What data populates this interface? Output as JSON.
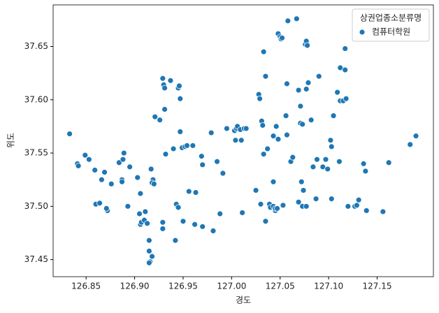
{
  "chart_data": {
    "type": "scatter",
    "x_label": "경도",
    "y_label": "위도",
    "legend_title": "상권업종소분류명",
    "legend": "upper right",
    "xlim": [
      126.816,
      127.208
    ],
    "ylim": [
      37.434,
      37.689
    ],
    "xticks": [
      126.85,
      {
        "value": 126.9,
        "label": "126.90"
      },
      126.95,
      {
        "value": 127.0,
        "label": "127.00"
      },
      127.05,
      {
        "value": 127.1,
        "label": "127.10"
      },
      127.15
    ],
    "yticks": [
      37.45,
      {
        "value": 37.5,
        "label": "37.50"
      },
      37.55,
      {
        "value": 37.6,
        "label": "37.60"
      },
      37.65
    ],
    "x": [
      126.833,
      126.841,
      126.842,
      126.849,
      126.853,
      126.859,
      126.866,
      126.869,
      126.86,
      126.864,
      126.872,
      126.871,
      126.876,
      126.884,
      126.888,
      126.889,
      126.887,
      126.887,
      126.893,
      126.895,
      126.903,
      126.906,
      126.905,
      126.906,
      126.907,
      126.911,
      126.91,
      126.913,
      126.915,
      126.915,
      126.916,
      126.918,
      126.915,
      126.917,
      126.919,
      126.918,
      126.92,
      126.921,
      126.926,
      126.929,
      126.93,
      126.931,
      126.931,
      126.932,
      126.929,
      126.929,
      126.937,
      126.94,
      126.943,
      126.945,
      126.945,
      126.946,
      126.947,
      126.947,
      126.949,
      126.952,
      126.954,
      126.95,
      126.956,
      126.96,
      126.963,
      126.962,
      126.942,
      126.969,
      126.97,
      126.97,
      126.979,
      126.981,
      126.985,
      126.988,
      126.991,
      126.995,
      127.003,
      127.004,
      127.005,
      127.006,
      127.009,
      127.01,
      127.013,
      127.015,
      127.011,
      127.025,
      127.03,
      127.028,
      127.029,
      127.031,
      127.032,
      127.033,
      127.033,
      127.035,
      127.035,
      127.037,
      127.039,
      127.04,
      127.043,
      127.043,
      127.045,
      127.045,
      127.047,
      127.046,
      127.048,
      127.048,
      127.05,
      127.051,
      127.052,
      127.043,
      127.053,
      127.056,
      127.057,
      127.057,
      127.058,
      127.061,
      127.063,
      127.067,
      127.069,
      127.069,
      127.071,
      127.071,
      127.072,
      127.073,
      127.073,
      127.074,
      127.077,
      127.077,
      127.076,
      127.077,
      127.078,
      127.079,
      127.082,
      127.084,
      127.087,
      127.088,
      127.09,
      127.094,
      127.097,
      127.099,
      127.102,
      127.103,
      127.103,
      127.105,
      127.109,
      127.112,
      127.111,
      127.117,
      127.112,
      127.117,
      127.115,
      127.118,
      127.12,
      127.127,
      127.129,
      127.131,
      127.138,
      127.139,
      127.136,
      127.156,
      127.162,
      127.184,
      127.19
    ],
    "series": [
      {
        "name": "컴퓨터학원",
        "color": "#1f77b4",
        "values": [
          37.568,
          37.54,
          37.538,
          37.548,
          37.544,
          37.534,
          37.525,
          37.532,
          37.502,
          37.503,
          37.496,
          37.498,
          37.521,
          37.541,
          37.544,
          37.55,
          37.525,
          37.523,
          37.5,
          37.537,
          37.527,
          37.512,
          37.493,
          37.483,
          37.485,
          37.495,
          37.487,
          37.484,
          37.468,
          37.458,
          37.448,
          37.453,
          37.447,
          37.535,
          37.525,
          37.522,
          37.521,
          37.584,
          37.581,
          37.62,
          37.614,
          37.611,
          37.591,
          37.549,
          37.485,
          37.479,
          37.618,
          37.554,
          37.502,
          37.499,
          37.611,
          37.613,
          37.601,
          37.57,
          37.555,
          37.556,
          37.557,
          37.486,
          37.514,
          37.557,
          37.513,
          37.483,
          37.468,
          37.547,
          37.539,
          37.481,
          37.569,
          37.477,
          37.542,
          37.493,
          37.531,
          37.573,
          37.571,
          37.562,
          37.573,
          37.575,
          37.572,
          37.562,
          37.573,
          37.573,
          37.494,
          37.515,
          37.502,
          37.605,
          37.601,
          37.58,
          37.576,
          37.549,
          37.645,
          37.622,
          37.486,
          37.554,
          37.502,
          37.499,
          37.5,
          37.523,
          37.496,
          37.498,
          37.498,
          37.575,
          37.563,
          37.662,
          37.659,
          37.657,
          37.658,
          37.566,
          37.501,
          37.585,
          37.567,
          37.615,
          37.674,
          37.542,
          37.546,
          37.676,
          37.609,
          37.504,
          37.594,
          37.578,
          37.523,
          37.577,
          37.5,
          37.515,
          37.5,
          37.61,
          37.652,
          37.655,
          37.651,
          37.616,
          37.581,
          37.537,
          37.507,
          37.544,
          37.622,
          37.537,
          37.544,
          37.535,
          37.562,
          37.556,
          37.507,
          37.585,
          37.607,
          37.599,
          37.542,
          37.648,
          37.63,
          37.628,
          37.599,
          37.601,
          37.5,
          37.5,
          37.501,
          37.506,
          37.533,
          37.496,
          37.54,
          37.495,
          37.541,
          37.558,
          37.566
        ]
      }
    ]
  }
}
